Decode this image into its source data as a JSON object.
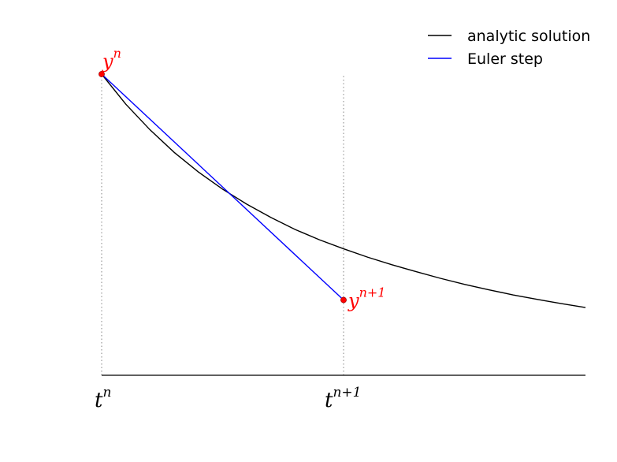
{
  "chart_data": {
    "type": "line",
    "title": "",
    "xlabel": "",
    "ylabel": "",
    "xlim": [
      0,
      2
    ],
    "ylim": [
      0,
      1
    ],
    "grid": false,
    "legend_placement": "top-right",
    "x_ticks": [
      {
        "x": 0,
        "base": "t",
        "sup": "n"
      },
      {
        "x": 1,
        "base": "t",
        "sup": "n+1"
      }
    ],
    "series": [
      {
        "name": "analytic solution",
        "color": "#000000",
        "x": [
          0,
          0.1,
          0.2,
          0.3,
          0.4,
          0.5,
          0.6,
          0.7,
          0.8,
          0.9,
          1.0,
          1.1,
          1.2,
          1.3,
          1.4,
          1.5,
          1.6,
          1.7,
          1.8,
          1.9,
          2.0
        ],
        "y": [
          1.0,
          0.9,
          0.815,
          0.74,
          0.675,
          0.618,
          0.568,
          0.524,
          0.484,
          0.45,
          0.42,
          0.392,
          0.367,
          0.344,
          0.322,
          0.302,
          0.284,
          0.267,
          0.252,
          0.238,
          0.225
        ]
      },
      {
        "name": "Euler step",
        "color": "#0000ff",
        "x": [
          0,
          1
        ],
        "y": [
          1.0,
          0.25
        ]
      }
    ],
    "points": [
      {
        "x": 0,
        "y": 1.0,
        "base": "y",
        "sup": "n",
        "color": "#ff0000"
      },
      {
        "x": 1,
        "y": 0.25,
        "base": "y",
        "sup": "n+1",
        "color": "#ff0000"
      }
    ],
    "vertical_guides": [
      0,
      1
    ]
  }
}
